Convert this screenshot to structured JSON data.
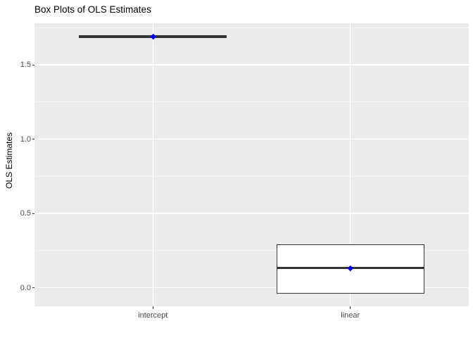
{
  "chart_data": {
    "type": "boxplot",
    "title": "Box Plots of OLS Estimates",
    "xlabel": "",
    "ylabel": "OLS Estimates",
    "categories": [
      "intercept",
      "linear"
    ],
    "series": [
      {
        "name": "intercept",
        "q1": 1.68,
        "median": 1.69,
        "q3": 1.7,
        "mean": 1.69,
        "whisker_low": 1.68,
        "whisker_high": 1.7
      },
      {
        "name": "linear",
        "q1": -0.04,
        "median": 0.13,
        "q3": 0.29,
        "mean": 0.13,
        "whisker_low": -0.04,
        "whisker_high": 0.29
      }
    ],
    "yticks": [
      0.0,
      0.5,
      1.0,
      1.5
    ],
    "ytick_labels": [
      "0.0",
      "0.5",
      "1.0",
      "1.5"
    ],
    "y_minor": [
      0.25,
      0.75,
      1.25,
      1.75
    ],
    "ylim": [
      -0.125,
      1.78
    ],
    "grid": true,
    "legend": "none",
    "box_width_fraction": 0.75,
    "colors": {
      "panel_bg": "#EBEBEB",
      "grid_major": "#FFFFFF",
      "grid_minor": "#F5F5F5",
      "box_border": "#333333",
      "box_fill": "#FFFFFF",
      "mean_point": "#0000FF",
      "axis_text": "#4D4D4D",
      "tick_mark": "#333333",
      "title_text": "#000000"
    }
  }
}
